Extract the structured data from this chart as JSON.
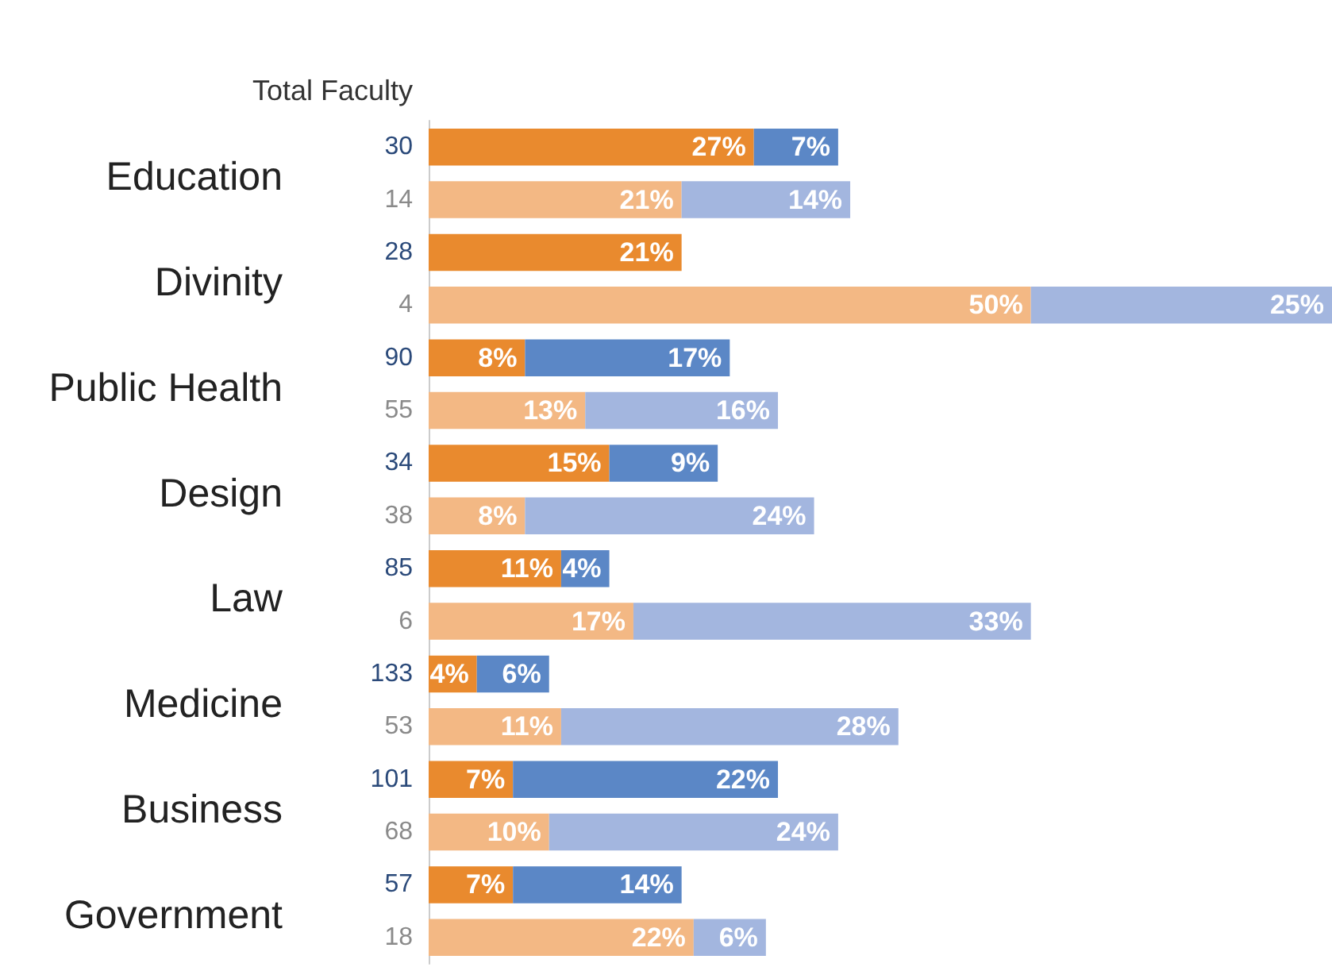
{
  "chart_data": {
    "type": "bar",
    "orientation": "horizontal",
    "stacked": true,
    "ylabel": "Total Faculty",
    "categories": [
      "30",
      "14",
      "28",
      "4",
      "90",
      "55",
      "34",
      "38",
      "85",
      "6",
      "133",
      "53",
      "101",
      "68",
      "57",
      "18"
    ],
    "series": [
      {
        "color": "#e98a2e",
        "values": [
          27,
          null,
          21,
          null,
          8,
          null,
          15,
          null,
          11,
          null,
          4,
          null,
          7,
          null,
          7,
          null
        ],
        "value_labels": [
          "27%",
          null,
          "21%",
          null,
          "8%",
          null,
          "15%",
          null,
          "11%",
          null,
          "4%",
          null,
          "7%",
          null,
          "7%",
          null
        ]
      },
      {
        "color": "#5b87c6",
        "values": [
          7,
          null,
          null,
          null,
          17,
          null,
          9,
          null,
          4,
          null,
          6,
          null,
          22,
          null,
          14,
          null
        ],
        "value_labels": [
          "7%",
          null,
          null,
          null,
          "17%",
          null,
          "9%",
          null,
          "4%",
          null,
          "6%",
          null,
          "22%",
          null,
          "14%",
          null
        ]
      },
      {
        "color": "#f3b884",
        "values": [
          null,
          21,
          null,
          50,
          null,
          13,
          null,
          8,
          null,
          17,
          null,
          11,
          null,
          10,
          null,
          22
        ],
        "value_labels": [
          null,
          "21%",
          null,
          "50%",
          null,
          "13%",
          null,
          "8%",
          null,
          "17%",
          null,
          "11%",
          null,
          "10%",
          null,
          "22%"
        ]
      },
      {
        "color": "#a3b6df",
        "values": [
          null,
          14,
          null,
          25,
          null,
          16,
          null,
          24,
          null,
          33,
          null,
          28,
          null,
          24,
          null,
          6
        ],
        "value_labels": [
          null,
          "14%",
          null,
          "25%",
          null,
          "16%",
          null,
          "24%",
          null,
          "33%",
          null,
          "28%",
          null,
          "24%",
          null,
          "6%"
        ]
      }
    ],
    "annotations": [
      "Education",
      "Divinity",
      "Public Health",
      "Design",
      "Law",
      "Medicine",
      "Business",
      "Government"
    ]
  }
}
